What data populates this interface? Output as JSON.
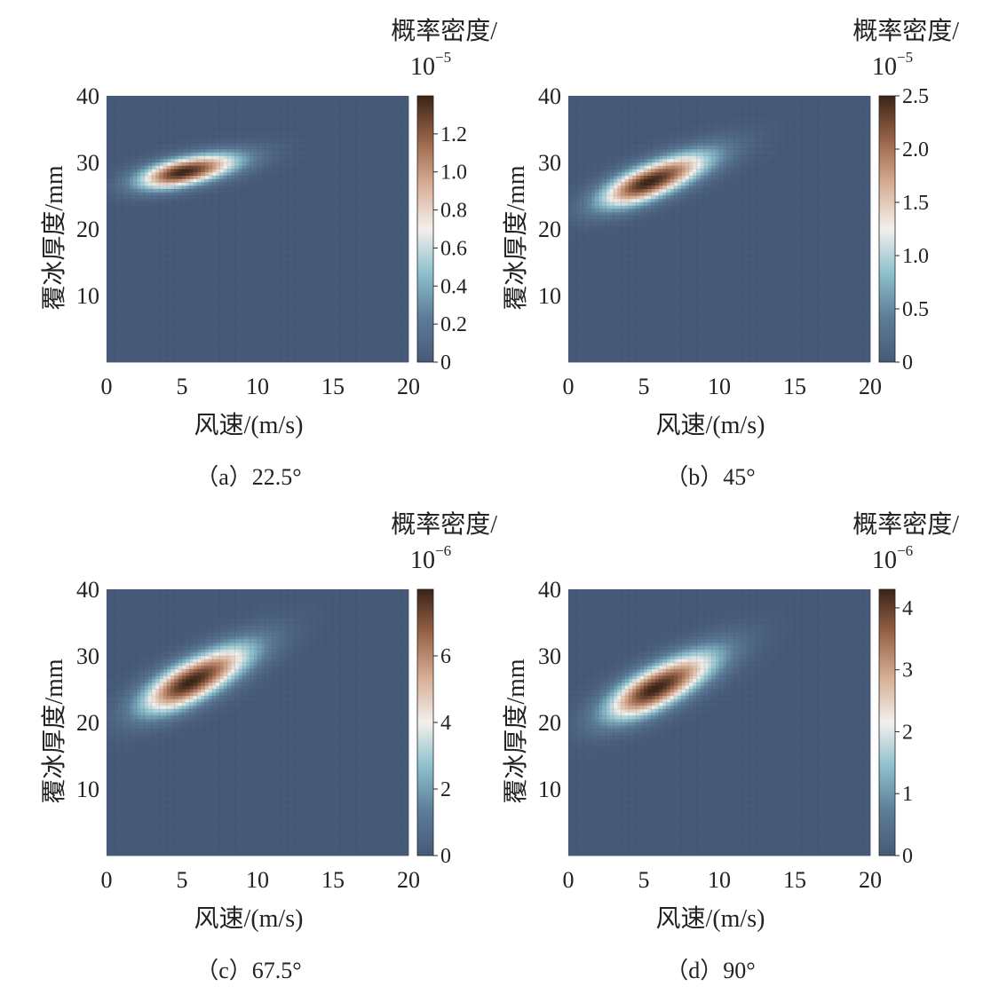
{
  "figure": {
    "background": "#ffffff",
    "colormap": [
      "#475a78",
      "#5c7c98",
      "#8cc0cc",
      "#f3f0ec",
      "#d7ae94",
      "#9a6448",
      "#3a2416"
    ]
  },
  "chart_data": [
    {
      "type": "heatmap",
      "panel": "a",
      "caption": "（a）22.5°",
      "xlabel": "风速/(m/s)",
      "ylabel": "覆冰厚度/mm",
      "xlim": [
        0,
        20
      ],
      "ylim": [
        0,
        40
      ],
      "xticks": [
        "0",
        "5",
        "10",
        "15",
        "20"
      ],
      "yticks": [
        "10",
        "20",
        "30",
        "40"
      ],
      "colorbar": {
        "title_line1": "概率密度/",
        "title_line2": "10",
        "exponent": "−5",
        "range": [
          0,
          1.4
        ],
        "ticks": [
          "0",
          "0.2",
          "0.4",
          "0.6",
          "0.8",
          "1.0",
          "1.2"
        ]
      },
      "peak": {
        "wind_speed": 5.0,
        "ice_thickness": 28.5,
        "density": 1.4
      },
      "spread": {
        "along_wind": 2.0,
        "across": 0.9,
        "tilt_deg": -12
      }
    },
    {
      "type": "heatmap",
      "panel": "b",
      "caption": "（b）45°",
      "xlabel": "风速/(m/s)",
      "ylabel": "覆冰厚度/mm",
      "xlim": [
        0,
        20
      ],
      "ylim": [
        0,
        40
      ],
      "xticks": [
        "0",
        "5",
        "10",
        "15",
        "20"
      ],
      "yticks": [
        "10",
        "20",
        "30",
        "40"
      ],
      "colorbar": {
        "title_line1": "概率密度/",
        "title_line2": "10",
        "exponent": "−5",
        "range": [
          0,
          2.5
        ],
        "ticks": [
          "0",
          "0.5",
          "1.0",
          "1.5",
          "2.0",
          "2.5"
        ]
      },
      "peak": {
        "wind_speed": 5.3,
        "ice_thickness": 27.0,
        "density": 2.5
      },
      "spread": {
        "along_wind": 2.3,
        "across": 1.1,
        "tilt_deg": -22
      }
    },
    {
      "type": "heatmap",
      "panel": "c",
      "caption": "（c）67.5°",
      "xlabel": "风速/(m/s)",
      "ylabel": "覆冰厚度/mm",
      "xlim": [
        0,
        20
      ],
      "ylim": [
        0,
        40
      ],
      "xticks": [
        "0",
        "5",
        "10",
        "15",
        "20"
      ],
      "yticks": [
        "10",
        "20",
        "30",
        "40"
      ],
      "colorbar": {
        "title_line1": "概率密度/",
        "title_line2": "10",
        "exponent": "−6",
        "range": [
          0,
          8
        ],
        "ticks": [
          "0",
          "2",
          "4",
          "6"
        ]
      },
      "peak": {
        "wind_speed": 5.5,
        "ice_thickness": 26.0,
        "density": 8.0
      },
      "spread": {
        "along_wind": 2.4,
        "across": 1.3,
        "tilt_deg": -28
      }
    },
    {
      "type": "heatmap",
      "panel": "d",
      "caption": "（d）90°",
      "xlabel": "风速/(m/s)",
      "ylabel": "覆冰厚度/mm",
      "xlim": [
        0,
        20
      ],
      "ylim": [
        0,
        40
      ],
      "xticks": [
        "0",
        "5",
        "10",
        "15",
        "20"
      ],
      "yticks": [
        "10",
        "20",
        "30",
        "40"
      ],
      "colorbar": {
        "title_line1": "概率密度/",
        "title_line2": "10",
        "exponent": "−6",
        "range": [
          0,
          4.3
        ],
        "ticks": [
          "0",
          "1",
          "2",
          "3",
          "4"
        ]
      },
      "peak": {
        "wind_speed": 5.7,
        "ice_thickness": 25.0,
        "density": 4.3
      },
      "spread": {
        "along_wind": 2.4,
        "across": 1.3,
        "tilt_deg": -28
      }
    }
  ]
}
